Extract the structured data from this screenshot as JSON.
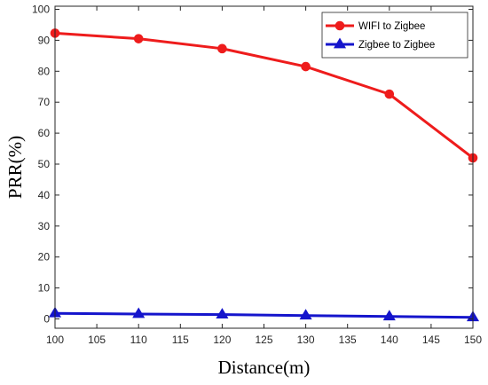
{
  "chart_data": {
    "type": "line",
    "title": "",
    "xlabel": "Distance(m)",
    "ylabel": "PRR(%)",
    "xlim": [
      100,
      150
    ],
    "ylim": [
      -3,
      101
    ],
    "xticks": [
      100,
      105,
      110,
      115,
      120,
      125,
      130,
      135,
      140,
      145,
      150
    ],
    "yticks": [
      0,
      10,
      20,
      30,
      40,
      50,
      60,
      70,
      80,
      90,
      100
    ],
    "grid": false,
    "legend_position": "top-right",
    "series": [
      {
        "name": "WIFI to Zigbee",
        "color": "#ee1c1c",
        "marker": "circle",
        "x": [
          100,
          110,
          120,
          130,
          140,
          150
        ],
        "y": [
          92.3,
          90.5,
          87.3,
          81.5,
          72.6,
          52.0
        ]
      },
      {
        "name": "Zigbee to Zigbee",
        "color": "#1515cc",
        "marker": "triangle",
        "x": [
          100,
          110,
          120,
          130,
          140,
          150
        ],
        "y": [
          1.8,
          1.6,
          1.4,
          1.1,
          0.8,
          0.5
        ]
      }
    ]
  }
}
